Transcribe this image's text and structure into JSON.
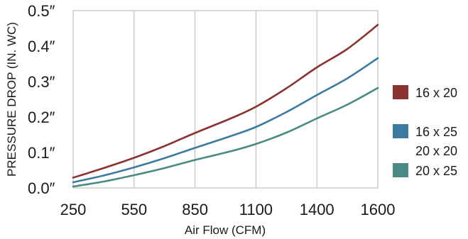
{
  "chart_data": {
    "type": "line",
    "title": "",
    "xlabel": "Air Flow (CFM)",
    "ylabel": "PRESSURE DROP (IN. WC)",
    "x_ticks": [
      250,
      550,
      850,
      1100,
      1400,
      1600
    ],
    "x_tick_labels": [
      "250",
      "550",
      "850",
      "1100",
      "1400",
      "1600"
    ],
    "y_ticks": [
      0,
      0.1,
      0.2,
      0.3,
      0.4,
      0.5
    ],
    "y_tick_labels": [
      "0.0″",
      "0.1″",
      "0.2″",
      "0.3″",
      "0.4″",
      "0.5″"
    ],
    "ylim": [
      0,
      0.5
    ],
    "grid": "vertical",
    "legend_position": "right",
    "x": [
      250,
      400,
      550,
      700,
      850,
      1000,
      1100,
      1250,
      1400,
      1500,
      1600
    ],
    "series": [
      {
        "legend_lines": [
          "16 x 20"
        ],
        "color": "#8b3230",
        "values": [
          0.029,
          0.056,
          0.085,
          0.118,
          0.155,
          0.197,
          0.229,
          0.281,
          0.34,
          0.392,
          0.46
        ]
      },
      {
        "legend_lines": [
          "16 x 25",
          "20 x 20"
        ],
        "color": "#3d7aa0",
        "values": [
          0.016,
          0.035,
          0.058,
          0.084,
          0.113,
          0.147,
          0.172,
          0.214,
          0.262,
          0.309,
          0.366
        ]
      },
      {
        "legend_lines": [
          "20 x 25"
        ],
        "color": "#478b83",
        "values": [
          0.004,
          0.018,
          0.036,
          0.056,
          0.079,
          0.104,
          0.124,
          0.156,
          0.196,
          0.235,
          0.282
        ]
      }
    ]
  }
}
